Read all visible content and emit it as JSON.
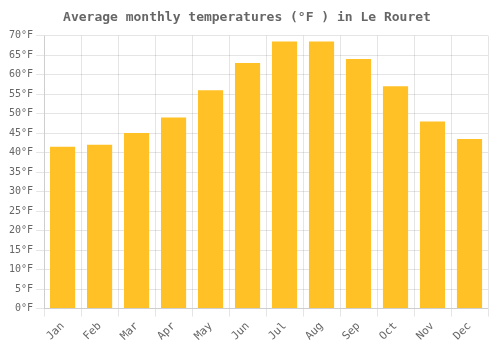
{
  "chart_data": {
    "type": "bar",
    "title": "Average monthly temperatures (°F ) in Le Rouret",
    "categories": [
      "Jan",
      "Feb",
      "Mar",
      "Apr",
      "May",
      "Jun",
      "Jul",
      "Aug",
      "Sep",
      "Oct",
      "Nov",
      "Dec"
    ],
    "values": [
      41.5,
      42.0,
      45.0,
      49.0,
      56.0,
      63.0,
      68.5,
      68.5,
      64.0,
      57.0,
      48.0,
      43.5
    ],
    "color": "#FFC125",
    "ylim": [
      0,
      70
    ],
    "yticks": [
      {
        "value": 0,
        "label": "0°F"
      },
      {
        "value": 5,
        "label": "5°F"
      },
      {
        "value": 10,
        "label": "10°F"
      },
      {
        "value": 15,
        "label": "15°F"
      },
      {
        "value": 20,
        "label": "20°F"
      },
      {
        "value": 25,
        "label": "25°F"
      },
      {
        "value": 30,
        "label": "30°F"
      },
      {
        "value": 35,
        "label": "35°F"
      },
      {
        "value": 40,
        "label": "40°F"
      },
      {
        "value": 45,
        "label": "45°F"
      },
      {
        "value": 50,
        "label": "50°F"
      },
      {
        "value": 55,
        "label": "55°F"
      },
      {
        "value": 60,
        "label": "60°F"
      },
      {
        "value": 65,
        "label": "65°F"
      },
      {
        "value": 70,
        "label": "70°F"
      }
    ],
    "grid": true
  }
}
